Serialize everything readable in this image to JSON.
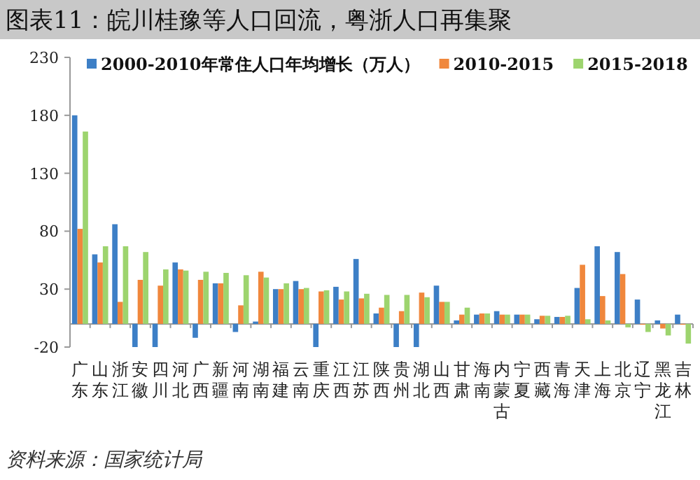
{
  "chart_data": {
    "type": "bar",
    "title": "图表11：皖川桂豫等人口回流，粤浙人口再集聚",
    "categories": [
      "广东",
      "山东",
      "浙江",
      "安徽",
      "四川",
      "河北",
      "广西",
      "新疆",
      "河南",
      "湖南",
      "福建",
      "云南",
      "重庆",
      "江西",
      "江苏",
      "陕西",
      "贵州",
      "湖北",
      "山西",
      "甘肃",
      "海南",
      "内蒙古",
      "宁夏",
      "西藏",
      "青海",
      "天津",
      "上海",
      "北京",
      "辽宁",
      "黑龙江",
      "吉林"
    ],
    "series": [
      {
        "name": "2000-2010年常住人口年均增长（万人）",
        "color": "#3d7fc6",
        "values": [
          180,
          60,
          86,
          -20,
          -20,
          53,
          -12,
          35,
          -7,
          2,
          30,
          37,
          -20,
          32,
          56,
          9,
          -20,
          -20,
          33,
          3,
          8,
          11,
          8,
          4,
          6,
          31,
          67,
          62,
          21,
          3,
          8
        ]
      },
      {
        "name": "2010-2015",
        "color": "#f0873c",
        "values": [
          82,
          53,
          19,
          38,
          33,
          47,
          38,
          35,
          16,
          45,
          30,
          30,
          28,
          21,
          22,
          14,
          11,
          27,
          19,
          8,
          9,
          8,
          8,
          7,
          6,
          51,
          24,
          43,
          0,
          -4,
          0
        ]
      },
      {
        "name": "2015-2018",
        "color": "#9dd46e",
        "values": [
          166,
          67,
          67,
          62,
          47,
          46,
          45,
          44,
          42,
          40,
          35,
          31,
          29,
          28,
          26,
          25,
          25,
          23,
          19,
          14,
          9,
          8,
          8,
          7,
          7,
          4,
          3,
          -3,
          -7,
          -10,
          -17
        ]
      }
    ],
    "ylim": [
      -20,
      230
    ],
    "yticks": [
      230,
      180,
      130,
      80,
      30,
      -20
    ],
    "legend": "top",
    "grid": false,
    "annotations": [
      "资料来源：国家统计局"
    ]
  }
}
